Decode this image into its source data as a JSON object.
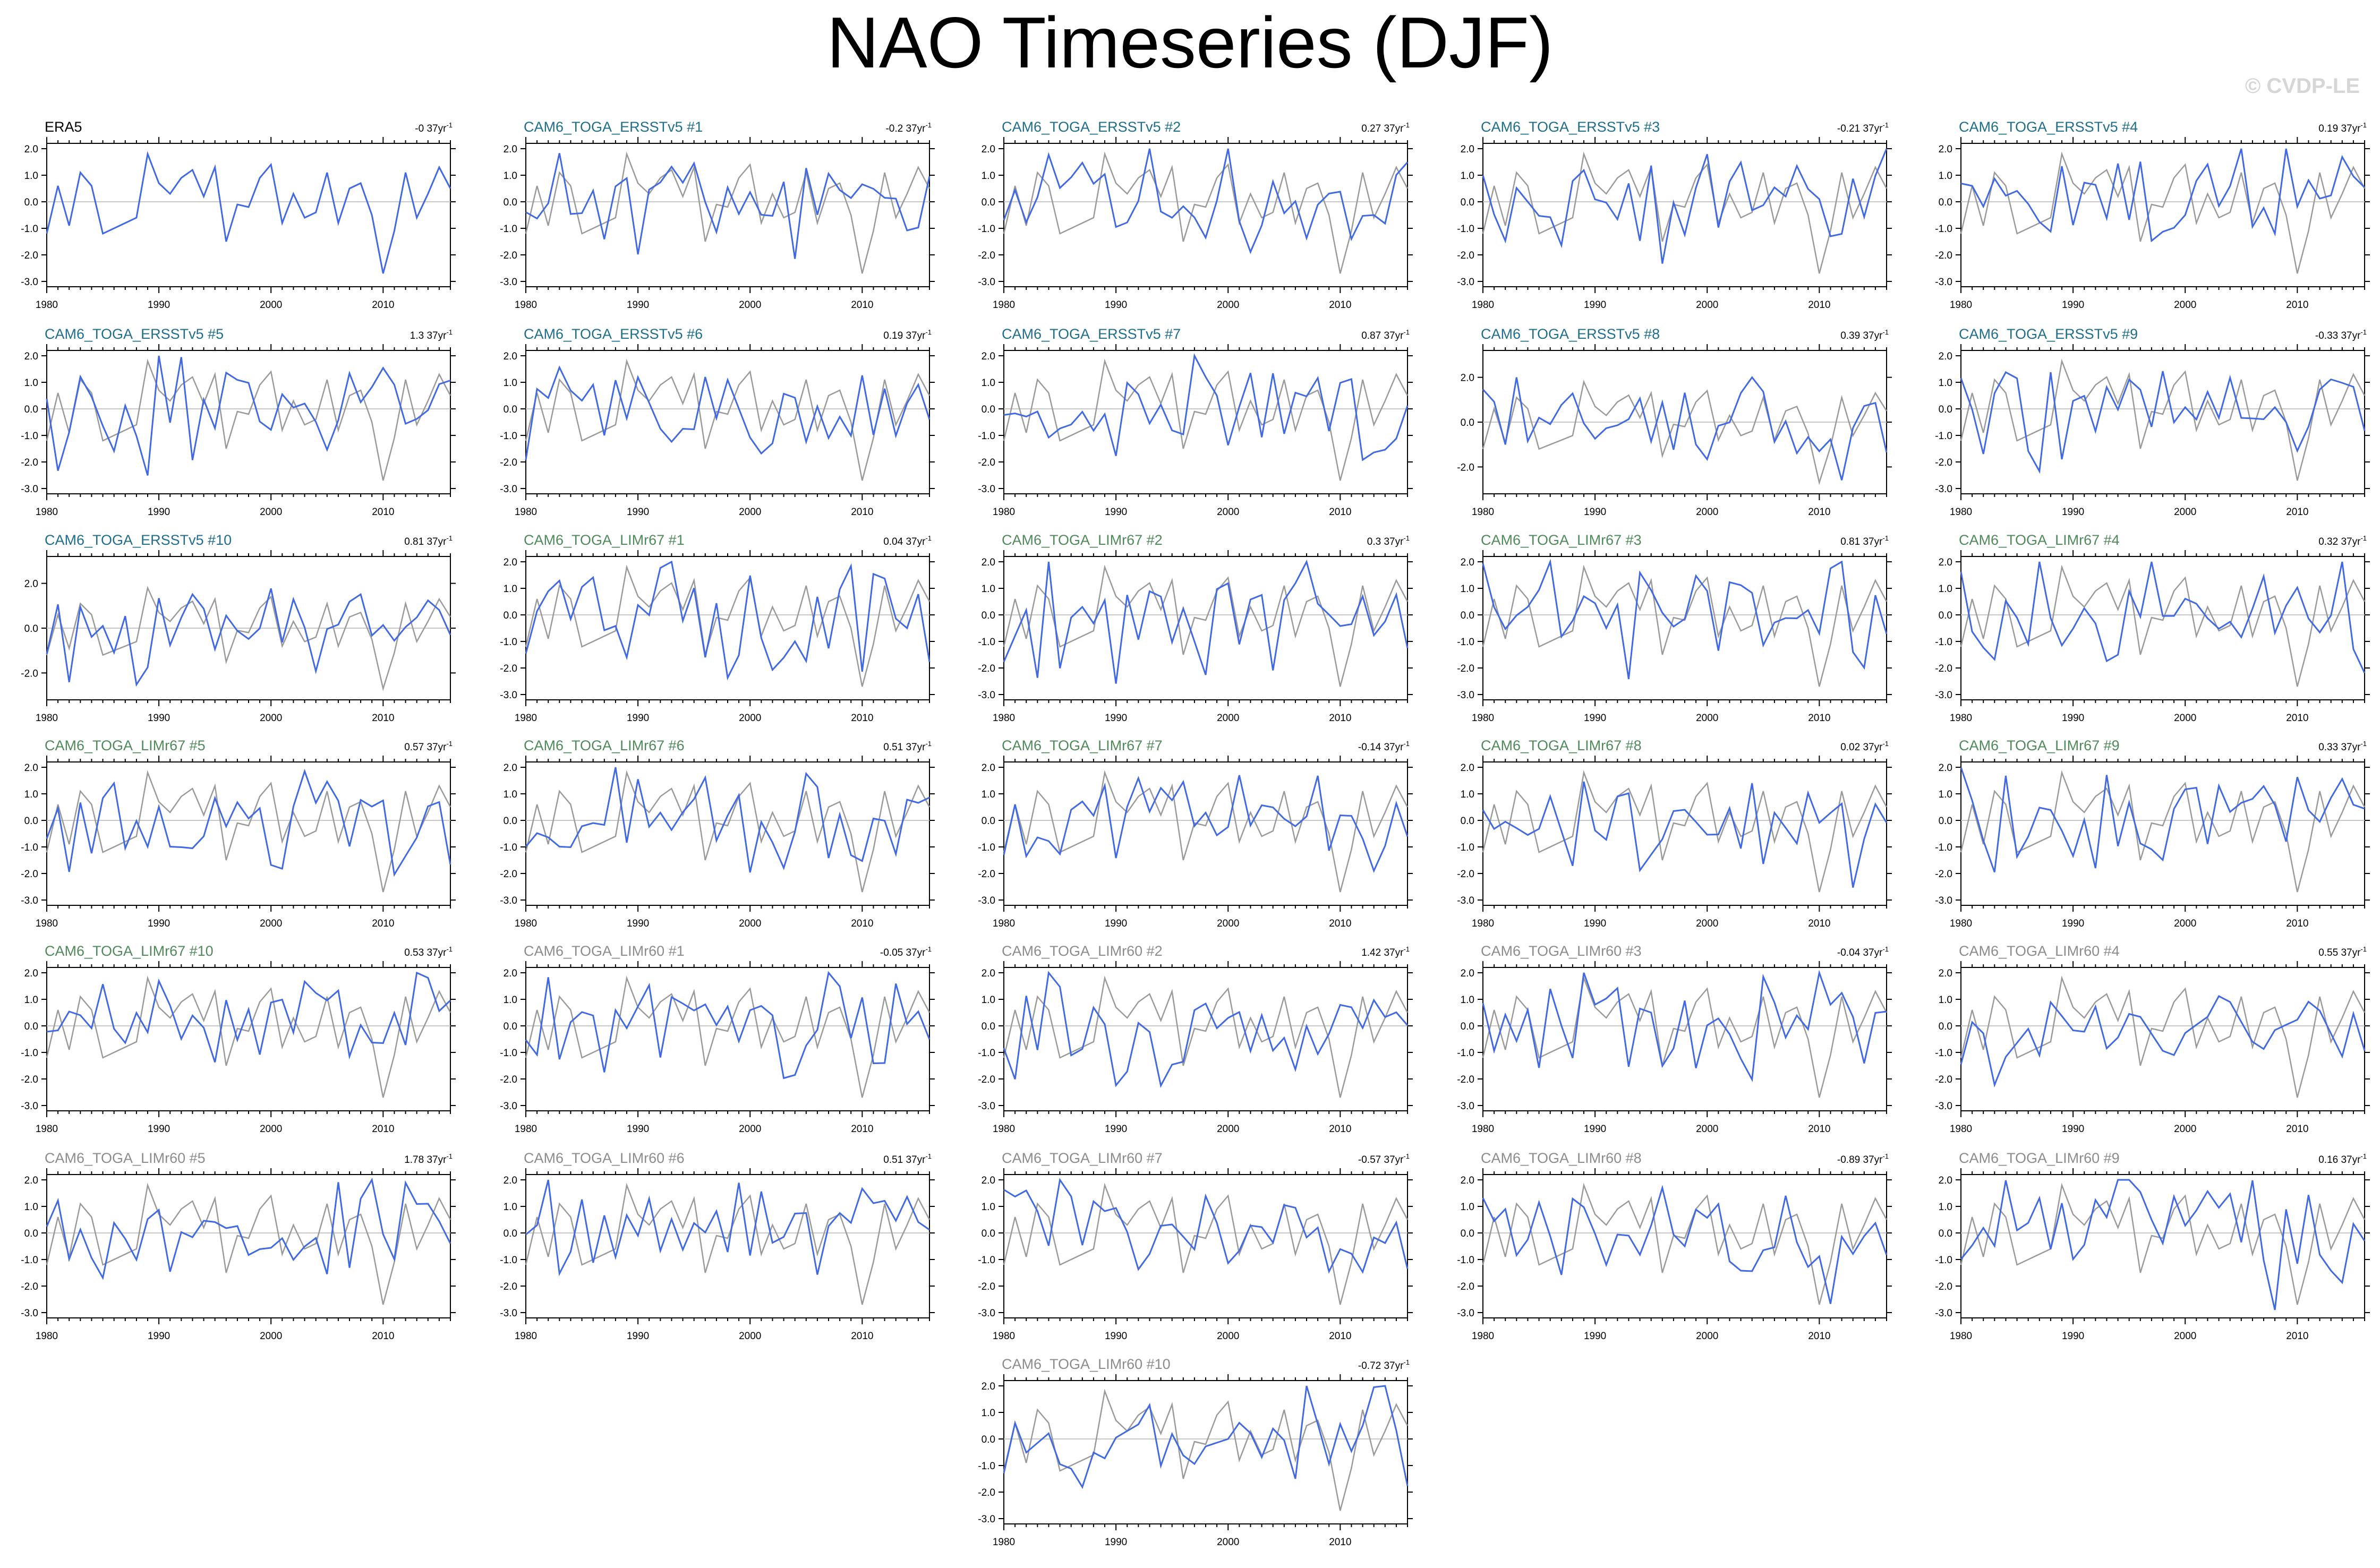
{
  "title": "NAO Timeseries (DJF)",
  "watermark": "© CVDP-LE",
  "colors": {
    "observed": "#000000",
    "ersst_label": "#1f6e8c",
    "lim67_label": "#4f8a5b",
    "lim60_label": "#8c8c8c",
    "member_line": "#4169e1",
    "reference_line": "#9a9a9a",
    "zero_line": "#c8c8c8"
  },
  "chart_data": [
    {
      "type": "line",
      "name": "ERA5",
      "label_group": "observed",
      "trend": "-0 37yr",
      "show_reference": false,
      "yticks": [
        2.0,
        1.0,
        0.0,
        -1.0,
        -2.0,
        -3.0
      ],
      "ylim": [
        -3.2,
        2.2
      ],
      "xlim": [
        1980,
        2016
      ],
      "xticks": [
        1980,
        1990,
        2000,
        2010
      ],
      "x": [
        1980,
        1981,
        1982,
        1983,
        1984,
        1985,
        1986,
        1987,
        1988,
        1989,
        1990,
        1991,
        1992,
        1993,
        1994,
        1995,
        1996,
        1997,
        1998,
        1999,
        2000,
        2001,
        2002,
        2003,
        2004,
        2005,
        2006,
        2007,
        2008,
        2009,
        2010,
        2011,
        2012,
        2013,
        2014,
        2015,
        2016
      ],
      "y": [
        -1.2,
        0.6,
        -0.9,
        1.1,
        0.6,
        -1.2,
        -1.0,
        -0.8,
        -0.6,
        1.8,
        0.7,
        0.3,
        0.9,
        1.2,
        0.2,
        1.3,
        -1.5,
        -0.1,
        -0.2,
        0.9,
        1.4,
        -0.8,
        0.3,
        -0.6,
        -0.4,
        1.1,
        -0.8,
        0.5,
        0.7,
        -0.5,
        -2.7,
        -1.1,
        1.1,
        -0.6,
        0.3,
        1.3,
        0.5
      ]
    },
    {
      "type": "line",
      "name": "CAM6_TOGA_ERSSTv5 #1",
      "label_group": "ersst",
      "trend": "-0.2 37yr",
      "show_reference": true,
      "yticks": [
        2.0,
        1.0,
        0.0,
        -1.0,
        -2.0,
        -3.0
      ],
      "ylim": [
        -3.2,
        2.2
      ],
      "xlim": [
        1980,
        2016
      ],
      "xticks": [
        1980,
        1990,
        2000,
        2010
      ],
      "seed": 11
    },
    {
      "type": "line",
      "name": "CAM6_TOGA_ERSSTv5 #2",
      "label_group": "ersst",
      "trend": "0.27 37yr",
      "show_reference": true,
      "yticks": [
        2.0,
        1.0,
        0.0,
        -1.0,
        -2.0,
        -3.0
      ],
      "ylim": [
        -3.2,
        2.2
      ],
      "xlim": [
        1980,
        2016
      ],
      "xticks": [
        1980,
        1990,
        2000,
        2010
      ],
      "seed": 12
    },
    {
      "type": "line",
      "name": "CAM6_TOGA_ERSSTv5 #3",
      "label_group": "ersst",
      "trend": "-0.21 37yr",
      "show_reference": true,
      "yticks": [
        2.0,
        1.0,
        0.0,
        -1.0,
        -2.0,
        -3.0
      ],
      "ylim": [
        -3.2,
        2.2
      ],
      "xlim": [
        1980,
        2016
      ],
      "xticks": [
        1980,
        1990,
        2000,
        2010
      ],
      "seed": 13
    },
    {
      "type": "line",
      "name": "CAM6_TOGA_ERSSTv5 #4",
      "label_group": "ersst",
      "trend": "0.19 37yr",
      "show_reference": true,
      "yticks": [
        2.0,
        1.0,
        0.0,
        -1.0,
        -2.0,
        -3.0
      ],
      "ylim": [
        -3.2,
        2.2
      ],
      "xlim": [
        1980,
        2016
      ],
      "xticks": [
        1980,
        1990,
        2000,
        2010
      ],
      "seed": 14
    },
    {
      "type": "line",
      "name": "CAM6_TOGA_ERSSTv5 #5",
      "label_group": "ersst",
      "trend": "1.3 37yr",
      "show_reference": true,
      "yticks": [
        2.0,
        1.0,
        0.0,
        -1.0,
        -2.0,
        -3.0
      ],
      "ylim": [
        -3.2,
        2.2
      ],
      "xlim": [
        1980,
        2016
      ],
      "xticks": [
        1980,
        1990,
        2000,
        2010
      ],
      "seed": 15
    },
    {
      "type": "line",
      "name": "CAM6_TOGA_ERSSTv5 #6",
      "label_group": "ersst",
      "trend": "0.19 37yr",
      "show_reference": true,
      "yticks": [
        2.0,
        1.0,
        0.0,
        -1.0,
        -2.0,
        -3.0
      ],
      "ylim": [
        -3.2,
        2.2
      ],
      "xlim": [
        1980,
        2016
      ],
      "xticks": [
        1980,
        1990,
        2000,
        2010
      ],
      "seed": 16
    },
    {
      "type": "line",
      "name": "CAM6_TOGA_ERSSTv5 #7",
      "label_group": "ersst",
      "trend": "0.87 37yr",
      "show_reference": true,
      "yticks": [
        2.0,
        1.0,
        0.0,
        -1.0,
        -2.0,
        -3.0
      ],
      "ylim": [
        -3.2,
        2.2
      ],
      "xlim": [
        1980,
        2016
      ],
      "xticks": [
        1980,
        1990,
        2000,
        2010
      ],
      "seed": 17
    },
    {
      "type": "line",
      "name": "CAM6_TOGA_ERSSTv5 #8",
      "label_group": "ersst",
      "trend": "0.39 37yr",
      "show_reference": true,
      "yticks": [
        2.0,
        0.0,
        -2.0
      ],
      "ylim": [
        -3.2,
        3.2
      ],
      "xlim": [
        1980,
        2016
      ],
      "xticks": [
        1980,
        1990,
        2000,
        2010
      ],
      "seed": 18
    },
    {
      "type": "line",
      "name": "CAM6_TOGA_ERSSTv5 #9",
      "label_group": "ersst",
      "trend": "-0.33 37yr",
      "show_reference": true,
      "yticks": [
        2.0,
        1.0,
        0.0,
        -1.0,
        -2.0,
        -3.0
      ],
      "ylim": [
        -3.2,
        2.2
      ],
      "xlim": [
        1980,
        2016
      ],
      "xticks": [
        1980,
        1990,
        2000,
        2010
      ],
      "seed": 19
    },
    {
      "type": "line",
      "name": "CAM6_TOGA_ERSSTv5 #10",
      "label_group": "ersst",
      "trend": "0.81 37yr",
      "show_reference": true,
      "yticks": [
        2.0,
        0.0,
        -2.0
      ],
      "ylim": [
        -3.2,
        3.2
      ],
      "xlim": [
        1980,
        2016
      ],
      "xticks": [
        1980,
        1990,
        2000,
        2010
      ],
      "seed": 20
    },
    {
      "type": "line",
      "name": "CAM6_TOGA_LIMr67 #1",
      "label_group": "lim67",
      "trend": "0.04 37yr",
      "show_reference": true,
      "yticks": [
        2.0,
        1.0,
        0.0,
        -1.0,
        -2.0,
        -3.0
      ],
      "ylim": [
        -3.2,
        2.2
      ],
      "xlim": [
        1980,
        2016
      ],
      "xticks": [
        1980,
        1990,
        2000,
        2010
      ],
      "seed": 21
    },
    {
      "type": "line",
      "name": "CAM6_TOGA_LIMr67 #2",
      "label_group": "lim67",
      "trend": "0.3 37yr",
      "show_reference": true,
      "yticks": [
        2.0,
        1.0,
        0.0,
        -1.0,
        -2.0,
        -3.0
      ],
      "ylim": [
        -3.2,
        2.2
      ],
      "xlim": [
        1980,
        2016
      ],
      "xticks": [
        1980,
        1990,
        2000,
        2010
      ],
      "seed": 22
    },
    {
      "type": "line",
      "name": "CAM6_TOGA_LIMr67 #3",
      "label_group": "lim67",
      "trend": "0.81 37yr",
      "show_reference": true,
      "yticks": [
        2.0,
        1.0,
        0.0,
        -1.0,
        -2.0,
        -3.0
      ],
      "ylim": [
        -3.2,
        2.2
      ],
      "xlim": [
        1980,
        2016
      ],
      "xticks": [
        1980,
        1990,
        2000,
        2010
      ],
      "seed": 23
    },
    {
      "type": "line",
      "name": "CAM6_TOGA_LIMr67 #4",
      "label_group": "lim67",
      "trend": "0.32 37yr",
      "show_reference": true,
      "yticks": [
        2.0,
        1.0,
        0.0,
        -1.0,
        -2.0,
        -3.0
      ],
      "ylim": [
        -3.2,
        2.2
      ],
      "xlim": [
        1980,
        2016
      ],
      "xticks": [
        1980,
        1990,
        2000,
        2010
      ],
      "seed": 24
    },
    {
      "type": "line",
      "name": "CAM6_TOGA_LIMr67 #5",
      "label_group": "lim67",
      "trend": "0.57 37yr",
      "show_reference": true,
      "yticks": [
        2.0,
        1.0,
        0.0,
        -1.0,
        -2.0,
        -3.0
      ],
      "ylim": [
        -3.2,
        2.2
      ],
      "xlim": [
        1980,
        2016
      ],
      "xticks": [
        1980,
        1990,
        2000,
        2010
      ],
      "seed": 25
    },
    {
      "type": "line",
      "name": "CAM6_TOGA_LIMr67 #6",
      "label_group": "lim67",
      "trend": "0.51 37yr",
      "show_reference": true,
      "yticks": [
        2.0,
        1.0,
        0.0,
        -1.0,
        -2.0,
        -3.0
      ],
      "ylim": [
        -3.2,
        2.2
      ],
      "xlim": [
        1980,
        2016
      ],
      "xticks": [
        1980,
        1990,
        2000,
        2010
      ],
      "seed": 26
    },
    {
      "type": "line",
      "name": "CAM6_TOGA_LIMr67 #7",
      "label_group": "lim67",
      "trend": "-0.14 37yr",
      "show_reference": true,
      "yticks": [
        2.0,
        1.0,
        0.0,
        -1.0,
        -2.0,
        -3.0
      ],
      "ylim": [
        -3.2,
        2.2
      ],
      "xlim": [
        1980,
        2016
      ],
      "xticks": [
        1980,
        1990,
        2000,
        2010
      ],
      "seed": 27
    },
    {
      "type": "line",
      "name": "CAM6_TOGA_LIMr67 #8",
      "label_group": "lim67",
      "trend": "0.02 37yr",
      "show_reference": true,
      "yticks": [
        2.0,
        1.0,
        0.0,
        -1.0,
        -2.0,
        -3.0
      ],
      "ylim": [
        -3.2,
        2.2
      ],
      "xlim": [
        1980,
        2016
      ],
      "xticks": [
        1980,
        1990,
        2000,
        2010
      ],
      "seed": 28
    },
    {
      "type": "line",
      "name": "CAM6_TOGA_LIMr67 #9",
      "label_group": "lim67",
      "trend": "0.33 37yr",
      "show_reference": true,
      "yticks": [
        2.0,
        1.0,
        0.0,
        -1.0,
        -2.0,
        -3.0
      ],
      "ylim": [
        -3.2,
        2.2
      ],
      "xlim": [
        1980,
        2016
      ],
      "xticks": [
        1980,
        1990,
        2000,
        2010
      ],
      "seed": 29
    },
    {
      "type": "line",
      "name": "CAM6_TOGA_LIMr67 #10",
      "label_group": "lim67",
      "trend": "0.53 37yr",
      "show_reference": true,
      "yticks": [
        2.0,
        1.0,
        0.0,
        -1.0,
        -2.0,
        -3.0
      ],
      "ylim": [
        -3.2,
        2.2
      ],
      "xlim": [
        1980,
        2016
      ],
      "xticks": [
        1980,
        1990,
        2000,
        2010
      ],
      "seed": 30
    },
    {
      "type": "line",
      "name": "CAM6_TOGA_LIMr60 #1",
      "label_group": "lim60",
      "trend": "-0.05 37yr",
      "show_reference": true,
      "yticks": [
        2.0,
        1.0,
        0.0,
        -1.0,
        -2.0,
        -3.0
      ],
      "ylim": [
        -3.2,
        2.2
      ],
      "xlim": [
        1980,
        2016
      ],
      "xticks": [
        1980,
        1990,
        2000,
        2010
      ],
      "seed": 31
    },
    {
      "type": "line",
      "name": "CAM6_TOGA_LIMr60 #2",
      "label_group": "lim60",
      "trend": "1.42 37yr",
      "show_reference": true,
      "yticks": [
        2.0,
        1.0,
        0.0,
        -1.0,
        -2.0,
        -3.0
      ],
      "ylim": [
        -3.2,
        2.2
      ],
      "xlim": [
        1980,
        2016
      ],
      "xticks": [
        1980,
        1990,
        2000,
        2010
      ],
      "seed": 32
    },
    {
      "type": "line",
      "name": "CAM6_TOGA_LIMr60 #3",
      "label_group": "lim60",
      "trend": "-0.04 37yr",
      "show_reference": true,
      "yticks": [
        2.0,
        1.0,
        0.0,
        -1.0,
        -2.0,
        -3.0
      ],
      "ylim": [
        -3.2,
        2.2
      ],
      "xlim": [
        1980,
        2016
      ],
      "xticks": [
        1980,
        1990,
        2000,
        2010
      ],
      "seed": 33
    },
    {
      "type": "line",
      "name": "CAM6_TOGA_LIMr60 #4",
      "label_group": "lim60",
      "trend": "0.55 37yr",
      "show_reference": true,
      "yticks": [
        2.0,
        1.0,
        0.0,
        -1.0,
        -2.0,
        -3.0
      ],
      "ylim": [
        -3.2,
        2.2
      ],
      "xlim": [
        1980,
        2016
      ],
      "xticks": [
        1980,
        1990,
        2000,
        2010
      ],
      "seed": 34
    },
    {
      "type": "line",
      "name": "CAM6_TOGA_LIMr60 #5",
      "label_group": "lim60",
      "trend": "1.78 37yr",
      "show_reference": true,
      "yticks": [
        2.0,
        1.0,
        0.0,
        -1.0,
        -2.0,
        -3.0
      ],
      "ylim": [
        -3.2,
        2.2
      ],
      "xlim": [
        1980,
        2016
      ],
      "xticks": [
        1980,
        1990,
        2000,
        2010
      ],
      "seed": 35
    },
    {
      "type": "line",
      "name": "CAM6_TOGA_LIMr60 #6",
      "label_group": "lim60",
      "trend": "0.51 37yr",
      "show_reference": true,
      "yticks": [
        2.0,
        1.0,
        0.0,
        -1.0,
        -2.0,
        -3.0
      ],
      "ylim": [
        -3.2,
        2.2
      ],
      "xlim": [
        1980,
        2016
      ],
      "xticks": [
        1980,
        1990,
        2000,
        2010
      ],
      "seed": 36
    },
    {
      "type": "line",
      "name": "CAM6_TOGA_LIMr60 #7",
      "label_group": "lim60",
      "trend": "-0.57 37yr",
      "show_reference": true,
      "yticks": [
        2.0,
        1.0,
        0.0,
        -1.0,
        -2.0,
        -3.0
      ],
      "ylim": [
        -3.2,
        2.2
      ],
      "xlim": [
        1980,
        2016
      ],
      "xticks": [
        1980,
        1990,
        2000,
        2010
      ],
      "seed": 37
    },
    {
      "type": "line",
      "name": "CAM6_TOGA_LIMr60 #8",
      "label_group": "lim60",
      "trend": "-0.89 37yr",
      "show_reference": true,
      "yticks": [
        2.0,
        1.0,
        0.0,
        -1.0,
        -2.0,
        -3.0
      ],
      "ylim": [
        -3.2,
        2.2
      ],
      "xlim": [
        1980,
        2016
      ],
      "xticks": [
        1980,
        1990,
        2000,
        2010
      ],
      "seed": 38
    },
    {
      "type": "line",
      "name": "CAM6_TOGA_LIMr60 #9",
      "label_group": "lim60",
      "trend": "0.16 37yr",
      "show_reference": true,
      "yticks": [
        2.0,
        1.0,
        0.0,
        -1.0,
        -2.0,
        -3.0
      ],
      "ylim": [
        -3.2,
        2.2
      ],
      "xlim": [
        1980,
        2016
      ],
      "xticks": [
        1980,
        1990,
        2000,
        2010
      ],
      "seed": 39
    },
    {
      "type": "line",
      "name": "CAM6_TOGA_LIMr60 #10",
      "label_group": "lim60",
      "trend": "-0.72 37yr",
      "show_reference": true,
      "yticks": [
        2.0,
        1.0,
        0.0,
        -1.0,
        -2.0,
        -3.0
      ],
      "ylim": [
        -3.2,
        2.2
      ],
      "xlim": [
        1980,
        2016
      ],
      "xticks": [
        1980,
        1990,
        2000,
        2010
      ],
      "seed": 40
    }
  ]
}
